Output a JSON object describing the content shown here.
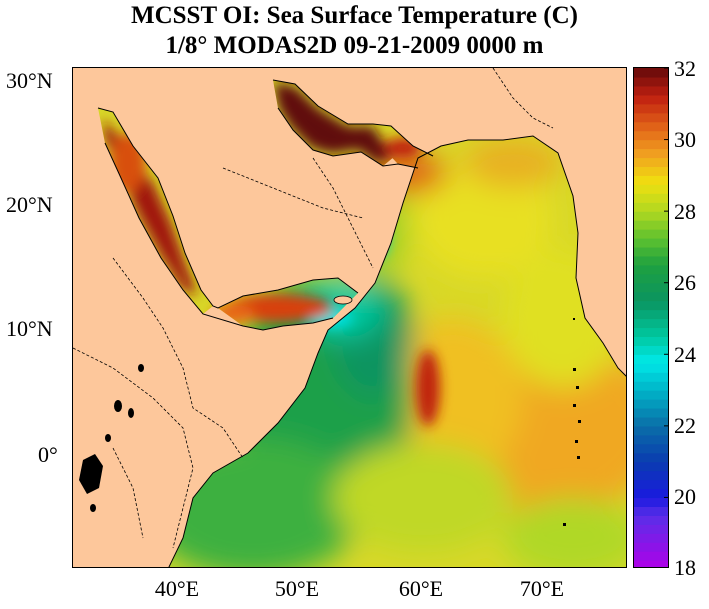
{
  "title": {
    "line1": "MCSST OI:  Sea Surface Temperature (C)",
    "line2": "1/8° MODAS2D 09-21-2009 0000 m"
  },
  "map": {
    "lat_ticks": [
      {
        "value": 30,
        "label": "30°N"
      },
      {
        "value": 20,
        "label": "20°N"
      },
      {
        "value": 10,
        "label": "10°N"
      },
      {
        "value": 0,
        "label": "0°"
      }
    ],
    "lon_ticks": [
      {
        "value": 40,
        "label": "40°E"
      },
      {
        "value": 50,
        "label": "50°E"
      },
      {
        "value": 60,
        "label": "60°E"
      },
      {
        "value": 70,
        "label": "70°E"
      }
    ],
    "land_color": "#fdc79b",
    "border_color": "#000000"
  },
  "colorbar": {
    "min": 18,
    "max": 32,
    "labels": [
      "32",
      "30",
      "28",
      "26",
      "24",
      "22",
      "20",
      "18"
    ],
    "stops": [
      {
        "value": 18,
        "color": "#b000e8"
      },
      {
        "value": 19.5,
        "color": "#5a2ee8"
      },
      {
        "value": 20,
        "color": "#1a1ae0"
      },
      {
        "value": 21,
        "color": "#0a3cb0"
      },
      {
        "value": 22,
        "color": "#0a6ea8"
      },
      {
        "value": 23,
        "color": "#00b4c8"
      },
      {
        "value": 23.8,
        "color": "#00e8e8"
      },
      {
        "value": 24.5,
        "color": "#00c8a0"
      },
      {
        "value": 25.5,
        "color": "#0a9460"
      },
      {
        "value": 26.5,
        "color": "#1ea040"
      },
      {
        "value": 27.2,
        "color": "#5ac030"
      },
      {
        "value": 28,
        "color": "#b0d820"
      },
      {
        "value": 28.8,
        "color": "#f0e010"
      },
      {
        "value": 29.6,
        "color": "#f0a020"
      },
      {
        "value": 30.4,
        "color": "#e06018"
      },
      {
        "value": 31.2,
        "color": "#c02010"
      },
      {
        "value": 32,
        "color": "#640a0a"
      }
    ]
  }
}
